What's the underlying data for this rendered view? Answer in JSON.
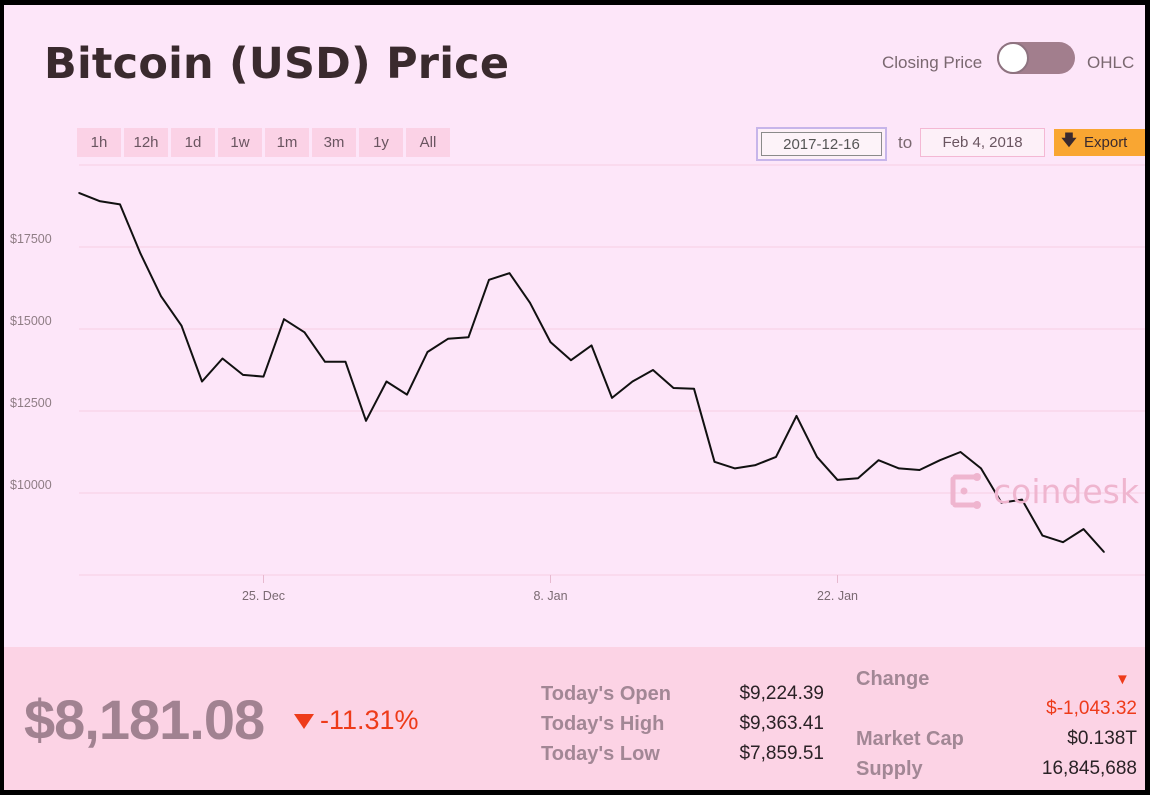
{
  "title": "Bitcoin (USD) Price",
  "toggle": {
    "left_label": "Closing Price",
    "right_label": "OHLC",
    "state": "Closing Price"
  },
  "range_buttons": [
    "1h",
    "12h",
    "1d",
    "1w",
    "1m",
    "3m",
    "1y",
    "All"
  ],
  "date_range": {
    "start": "2017-12-16",
    "to_label": "to",
    "end": "Feb 4, 2018"
  },
  "export_label": "Export",
  "watermark": "coindesk",
  "colors": {
    "background": "#fde6f9",
    "footer": "#fcd3e5",
    "line": "#111111",
    "negative": "#ee3b1a",
    "export": "#f9a632"
  },
  "chart_data": {
    "type": "line",
    "title": "",
    "xlabel": "",
    "ylabel": "",
    "yticks": [
      "$10000",
      "$12500",
      "$15000",
      "$17500"
    ],
    "ytick_values": [
      10000,
      12500,
      15000,
      17500
    ],
    "xticks": [
      "25. Dec",
      "8. Jan",
      "22. Jan"
    ],
    "xtick_dates": [
      "2017-12-25",
      "2018-01-08",
      "2018-01-22"
    ],
    "ylim": [
      7500,
      20000
    ],
    "xlim": [
      "2017-12-16",
      "2018-02-06"
    ],
    "grid": true,
    "series": [
      {
        "x": [
          "2017-12-16",
          "2017-12-17",
          "2017-12-18",
          "2017-12-19",
          "2017-12-20",
          "2017-12-21",
          "2017-12-22",
          "2017-12-23",
          "2017-12-24",
          "2017-12-25",
          "2017-12-26",
          "2017-12-27",
          "2017-12-28",
          "2017-12-29",
          "2017-12-30",
          "2017-12-31",
          "2018-01-01",
          "2018-01-02",
          "2018-01-03",
          "2018-01-04",
          "2018-01-05",
          "2018-01-06",
          "2018-01-07",
          "2018-01-08",
          "2018-01-09",
          "2018-01-10",
          "2018-01-11",
          "2018-01-12",
          "2018-01-13",
          "2018-01-14",
          "2018-01-15",
          "2018-01-16",
          "2018-01-17",
          "2018-01-18",
          "2018-01-19",
          "2018-01-20",
          "2018-01-21",
          "2018-01-22",
          "2018-01-23",
          "2018-01-24",
          "2018-01-25",
          "2018-01-26",
          "2018-01-27",
          "2018-01-28",
          "2018-01-29",
          "2018-01-30",
          "2018-01-31",
          "2018-02-01",
          "2018-02-02",
          "2018-02-03",
          "2018-02-04"
        ],
        "values": [
          19150,
          18900,
          18800,
          17300,
          16000,
          15100,
          13400,
          14100,
          13600,
          13550,
          15300,
          14900,
          14000,
          14000,
          12200,
          13400,
          13000,
          14300,
          14700,
          14750,
          16500,
          16700,
          15800,
          14600,
          14050,
          14500,
          12900,
          13400,
          13750,
          13200,
          13180,
          10950,
          10750,
          10850,
          11100,
          12350,
          11100,
          10400,
          10450,
          11000,
          10750,
          10700,
          11000,
          11250,
          10750,
          9700,
          9800,
          8700,
          8500,
          8900,
          8200
        ]
      }
    ]
  },
  "summary": {
    "price": "$8,181.08",
    "change_pct": "-11.31%",
    "today_open_label": "Today's Open",
    "today_open": "$9,224.39",
    "today_high_label": "Today's High",
    "today_high": "$9,363.41",
    "today_low_label": "Today's Low",
    "today_low": "$7,859.51",
    "change_label": "Change",
    "change_value": "$-1,043.32",
    "market_cap_label": "Market Cap",
    "market_cap": "$0.138T",
    "supply_label": "Supply",
    "supply": "16,845,688"
  }
}
